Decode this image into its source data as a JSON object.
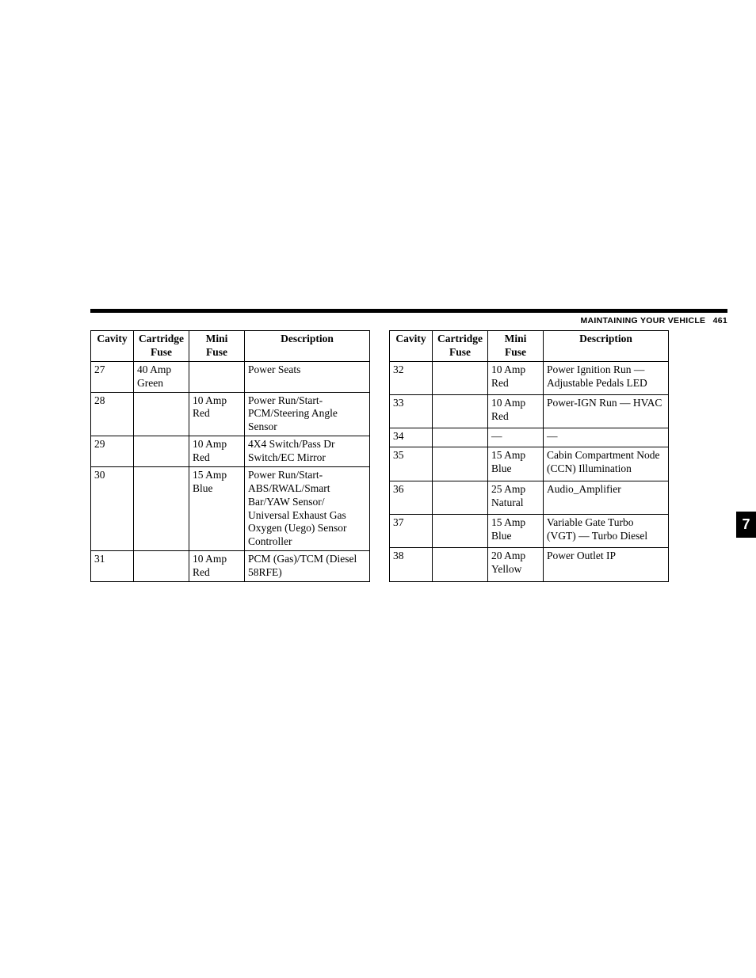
{
  "header": {
    "title": "MAINTAINING YOUR VEHICLE",
    "page_number": "461"
  },
  "side_tab": "7",
  "table_headers": {
    "cavity": "Cavity",
    "cartridge_line1": "Cartridge",
    "cartridge_line2": "Fuse",
    "mini_line1": "Mini",
    "mini_line2": "Fuse",
    "description": "Description"
  },
  "left_table": {
    "rows": [
      {
        "cavity": "27",
        "cartridge": "40 Amp Green",
        "mini": "",
        "description": "Power Seats"
      },
      {
        "cavity": "28",
        "cartridge": "",
        "mini": "10 Amp Red",
        "description": "Power Run/Start-PCM/Steering Angle Sensor"
      },
      {
        "cavity": "29",
        "cartridge": "",
        "mini": "10 Amp Red",
        "description": "4X4 Switch/Pass Dr Switch/EC Mirror"
      },
      {
        "cavity": "30",
        "cartridge": "",
        "mini": "15 Amp Blue",
        "description": "Power Run/Start-ABS/RWAL/Smart Bar/YAW Sensor/ Universal Exhaust Gas Oxygen (Uego) Sensor Controller"
      },
      {
        "cavity": "31",
        "cartridge": "",
        "mini": "10 Amp Red",
        "description": "PCM (Gas)/TCM (Diesel 58RFE)"
      }
    ]
  },
  "right_table": {
    "rows": [
      {
        "cavity": "32",
        "cartridge": "",
        "mini": "10 Amp Red",
        "description": "Power Ignition Run — Adjustable Pedals LED"
      },
      {
        "cavity": "33",
        "cartridge": "",
        "mini": "10 Amp Red",
        "description": "Power-IGN Run — HVAC"
      },
      {
        "cavity": "34",
        "cartridge": "",
        "mini": "—",
        "description": "—"
      },
      {
        "cavity": "35",
        "cartridge": "",
        "mini": "15 Amp Blue",
        "description": "Cabin Compartment Node (CCN) Illumination"
      },
      {
        "cavity": "36",
        "cartridge": "",
        "mini": "25 Amp Natural",
        "description": "Audio_Amplifier"
      },
      {
        "cavity": "37",
        "cartridge": "",
        "mini": "15 Amp Blue",
        "description": "Variable Gate Turbo (VGT) — Turbo Diesel"
      },
      {
        "cavity": "38",
        "cartridge": "",
        "mini": "20 Amp Yellow",
        "description": "Power Outlet IP"
      }
    ]
  }
}
